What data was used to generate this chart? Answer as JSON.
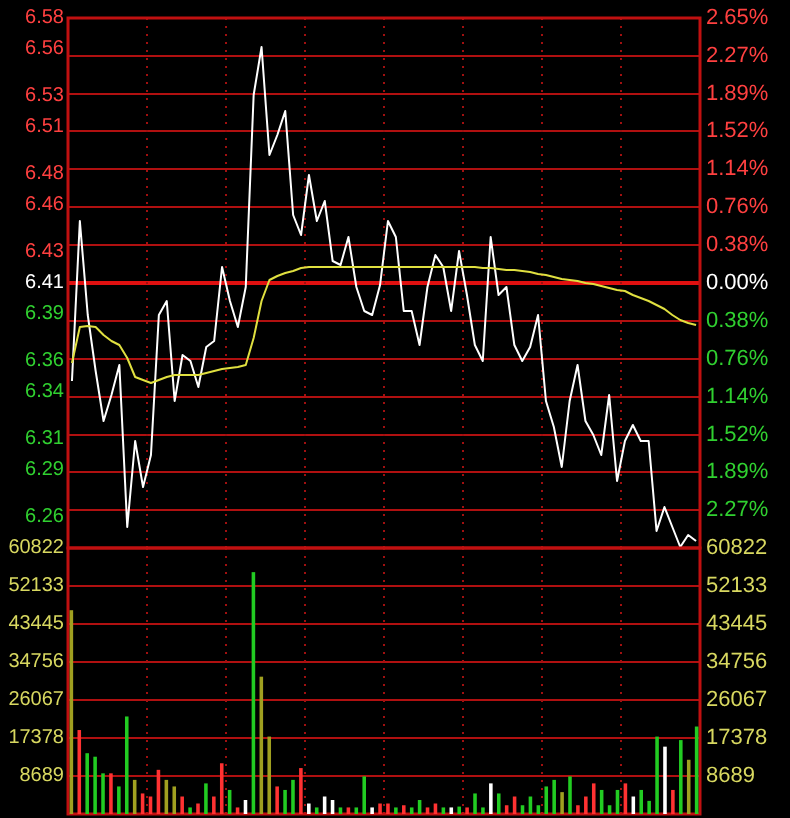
{
  "chart_data": [
    {
      "type": "line",
      "categories": [
        null,
        null,
        null,
        null,
        null,
        null,
        null,
        null,
        null,
        null,
        null,
        null,
        null,
        null,
        null,
        null,
        null,
        null,
        null,
        null,
        null,
        null,
        null,
        null,
        null,
        null,
        null,
        null,
        null,
        null,
        null,
        null,
        null,
        null,
        null,
        null,
        null,
        null,
        null,
        null,
        null,
        null,
        null,
        null,
        null,
        null,
        null,
        null,
        null,
        null,
        null,
        null,
        null,
        null,
        null,
        null,
        null,
        null,
        null,
        null,
        null,
        null,
        null,
        null,
        null,
        null,
        null,
        null,
        null,
        null,
        null,
        null,
        null,
        null,
        null,
        null,
        null,
        null,
        null,
        null
      ],
      "ylim": [
        6.24,
        6.58
      ],
      "yticks": [
        6.58,
        6.56,
        6.53,
        6.51,
        6.48,
        6.46,
        6.43,
        6.41,
        6.39,
        6.36,
        6.34,
        6.31,
        6.29,
        6.26
      ],
      "y2lim": [
        -2.65,
        2.65
      ],
      "y2ticks": [
        {
          "value": 2.65,
          "label": "2.65%"
        },
        {
          "value": 2.27,
          "label": "2.27%"
        },
        {
          "value": 1.89,
          "label": "1.89%"
        },
        {
          "value": 1.52,
          "label": "1.52%"
        },
        {
          "value": 1.14,
          "label": "1.14%"
        },
        {
          "value": 0.76,
          "label": "0.76%"
        },
        {
          "value": 0.38,
          "label": "0.38%"
        },
        {
          "value": 0,
          "label": "0.00%"
        },
        {
          "value": -0.38,
          "label": "0.38%"
        },
        {
          "value": -0.76,
          "label": "0.76%"
        },
        {
          "value": -1.14,
          "label": "1.14%"
        },
        {
          "value": -1.52,
          "label": "1.52%"
        },
        {
          "value": -1.89,
          "label": "1.89%"
        },
        {
          "value": -2.27,
          "label": "2.27%"
        }
      ],
      "tick_labels": "y",
      "grid": true,
      "marker": "none",
      "line_style": "solid",
      "ref_lines": [
        {
          "axis": "y2",
          "value": 0,
          "color": "#e01010"
        }
      ],
      "series": [
        {
          "color": "#ffffff",
          "axis": "y2",
          "values": [
            -0.98,
            0.62,
            -0.32,
            -0.88,
            -1.38,
            -1.12,
            -0.82,
            -2.44,
            -1.58,
            -2.04,
            -1.72,
            -0.32,
            -0.18,
            -1.18,
            -0.72,
            -0.78,
            -1.04,
            -0.64,
            -0.58,
            0.16,
            -0.18,
            -0.44,
            -0.04,
            1.88,
            2.36,
            1.28,
            1.48,
            1.72,
            0.68,
            0.48,
            1.08,
            0.62,
            0.82,
            0.22,
            0.18,
            0.46,
            -0.04,
            -0.28,
            -0.32,
            -0.02,
            0.62,
            0.46,
            -0.28,
            -0.28,
            -0.62,
            -0.04,
            0.28,
            0.16,
            -0.28,
            0.32,
            -0.12,
            -0.62,
            -0.78,
            0.46,
            -0.12,
            -0.04,
            -0.62,
            -0.78,
            -0.64,
            -0.32,
            -1.18,
            -1.44,
            -1.84,
            -1.18,
            -0.82,
            -1.38,
            -1.52,
            -1.72,
            -1.12,
            -1.98,
            -1.58,
            -1.42,
            -1.58,
            -1.58,
            -2.48,
            -2.24,
            -2.44,
            -2.64,
            -2.52,
            -2.58
          ]
        },
        {
          "color": "#e0e040",
          "axis": "y2",
          "values": [
            -0.8,
            -0.44,
            -0.43,
            -0.44,
            -0.52,
            -0.58,
            -0.62,
            -0.75,
            -0.94,
            -0.97,
            -1.0,
            -0.97,
            -0.94,
            -0.92,
            -0.92,
            -0.92,
            -0.92,
            -0.9,
            -0.88,
            -0.86,
            -0.85,
            -0.84,
            -0.82,
            -0.55,
            -0.18,
            0.03,
            0.07,
            0.1,
            0.12,
            0.15,
            0.16,
            0.16,
            0.16,
            0.16,
            0.16,
            0.16,
            0.16,
            0.16,
            0.16,
            0.16,
            0.16,
            0.16,
            0.16,
            0.16,
            0.16,
            0.16,
            0.16,
            0.16,
            0.16,
            0.16,
            0.16,
            0.16,
            0.15,
            0.15,
            0.14,
            0.13,
            0.13,
            0.12,
            0.11,
            0.09,
            0.08,
            0.06,
            0.04,
            0.03,
            0.02,
            0.0,
            -0.01,
            -0.03,
            -0.05,
            -0.07,
            -0.08,
            -0.12,
            -0.15,
            -0.18,
            -0.22,
            -0.26,
            -0.32,
            -0.37,
            -0.4,
            -0.42
          ]
        }
      ]
    },
    {
      "type": "bar",
      "categories": [
        null,
        null,
        null,
        null,
        null,
        null,
        null,
        null,
        null,
        null,
        null,
        null,
        null,
        null,
        null,
        null,
        null,
        null,
        null,
        null,
        null,
        null,
        null,
        null,
        null,
        null,
        null,
        null,
        null,
        null,
        null,
        null,
        null,
        null,
        null,
        null,
        null,
        null,
        null,
        null,
        null,
        null,
        null,
        null,
        null,
        null,
        null,
        null,
        null,
        null,
        null,
        null,
        null,
        null,
        null,
        null,
        null,
        null,
        null,
        null,
        null,
        null,
        null,
        null,
        null,
        null,
        null,
        null,
        null,
        null,
        null,
        null,
        null,
        null,
        null,
        null,
        null,
        null,
        null,
        null
      ],
      "ylim": [
        0,
        60822
      ],
      "yticks": [
        60822,
        52133,
        43445,
        34756,
        26067,
        17378,
        8689
      ],
      "y2lim": [
        0,
        60822
      ],
      "y2ticks": [
        60822,
        52133,
        43445,
        34756,
        26067,
        17378,
        8689
      ],
      "tick_labels": "y",
      "grid": true,
      "values": [
        46600,
        19200,
        13900,
        13100,
        9300,
        9300,
        6300,
        22300,
        7800,
        4700,
        4000,
        10100,
        7800,
        6300,
        4000,
        1500,
        2400,
        7000,
        4000,
        11600,
        5500,
        1500,
        3200,
        55300,
        31400,
        17700,
        6300,
        5500,
        7800,
        10500,
        2400,
        1500,
        4000,
        3200,
        1500,
        1500,
        1500,
        8600,
        1500,
        2400,
        2400,
        1500,
        2000,
        1500,
        3200,
        1500,
        2400,
        1500,
        1500,
        1700,
        1500,
        4700,
        1500,
        7000,
        4700,
        2000,
        4000,
        2000,
        4000,
        2000,
        6300,
        7800,
        5000,
        8600,
        2000,
        4000,
        7000,
        5500,
        2000,
        5500,
        7000,
        4000,
        5500,
        3000,
        17700,
        15400,
        5500,
        16900,
        12400,
        20000
      ],
      "colors": [
        "#a0a020",
        "#ff3232",
        "#22cc22",
        "#22cc22",
        "#22cc22",
        "#ff3232",
        "#22cc22",
        "#22cc22",
        "#a0a020",
        "#ff3232",
        "#ff3232",
        "#ff3232",
        "#a0a020",
        "#a0a020",
        "#ff3232",
        "#22cc22",
        "#ff3232",
        "#22cc22",
        "#ff3232",
        "#ff3232",
        "#22cc22",
        "#ff3232",
        "#ffffff",
        "#22cc22",
        "#a0a020",
        "#a0a020",
        "#ff3232",
        "#22cc22",
        "#22cc22",
        "#ff3232",
        "#ffffff",
        "#22cc22",
        "#ffffff",
        "#ffffff",
        "#22cc22",
        "#ff3232",
        "#22cc22",
        "#22cc22",
        "#ffffff",
        "#ff3232",
        "#ff3232",
        "#22cc22",
        "#ff3232",
        "#22cc22",
        "#22cc22",
        "#ff3232",
        "#ff3232",
        "#22cc22",
        "#ffffff",
        "#22cc22",
        "#ff3232",
        "#22cc22",
        "#22cc22",
        "#ffffff",
        "#22cc22",
        "#ff3232",
        "#ff3232",
        "#22cc22",
        "#22cc22",
        "#22cc22",
        "#22cc22",
        "#22cc22",
        "#a0a020",
        "#22cc22",
        "#ff3232",
        "#ff3232",
        "#ff3232",
        "#22cc22",
        "#22cc22",
        "#22cc22",
        "#ff3232",
        "#ffffff",
        "#22cc22",
        "#22cc22",
        "#22cc22",
        "#ffffff",
        "#ff3232",
        "#22cc22",
        "#a0a020",
        "#22cc22"
      ]
    }
  ]
}
